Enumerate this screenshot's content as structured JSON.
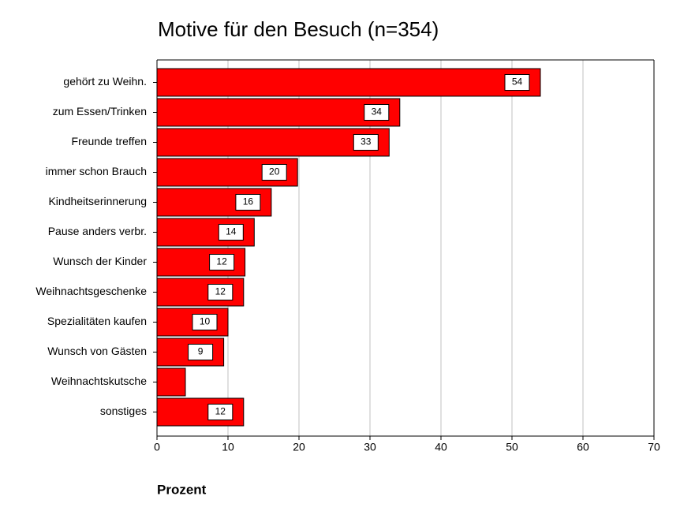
{
  "chart_data": {
    "type": "hbar",
    "title": "Motive für den Besuch (n=354)",
    "x_label": "Prozent",
    "categories": [
      "gehört zu Weihn.",
      "zum Essen/Trinken",
      "Freunde treffen",
      "immer schon Brauch",
      "Kindheitserinnerung",
      "Pause anders verbr.",
      "Wunsch der Kinder",
      "Weihnachtsgeschenke",
      "Spezialitäten kaufen",
      "Wunsch von Gästen",
      "Weihnachtskutsche",
      "sonstiges"
    ],
    "values": [
      54,
      34.2,
      32.7,
      19.8,
      16.1,
      13.7,
      12.4,
      12.2,
      10,
      9.4,
      4,
      12.2
    ],
    "value_labels": [
      "54",
      "34",
      "33",
      "20",
      "16",
      "14",
      "12",
      "12",
      "10",
      "9",
      null,
      "12"
    ],
    "color": "#ff0000",
    "xlim": [
      0,
      70
    ],
    "xticks": [
      0,
      10,
      20,
      30,
      40,
      50,
      60,
      70
    ],
    "grid": true
  }
}
